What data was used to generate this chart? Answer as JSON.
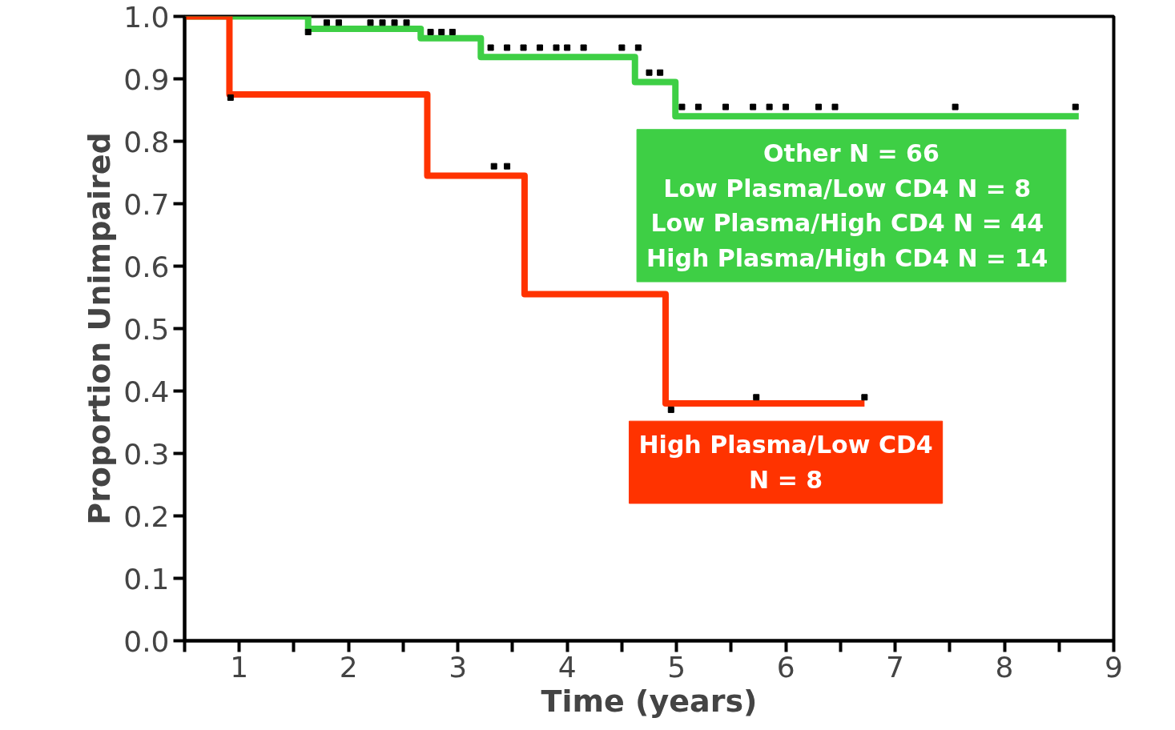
{
  "chart_data": {
    "type": "step",
    "xlabel": "Time (years)",
    "ylabel": "Proportion Unimpaired",
    "xlim": [
      0.5,
      9.0
    ],
    "ylim": [
      0.0,
      1.0
    ],
    "xticks": [
      {
        "value": 0.5,
        "label": null
      },
      1,
      {
        "value": 1.5,
        "label": null
      },
      2,
      {
        "value": 2.5,
        "label": null
      },
      3,
      {
        "value": 3.5,
        "label": null
      },
      4,
      {
        "value": 4.5,
        "label": null
      },
      5,
      {
        "value": 5.5,
        "label": null
      },
      6,
      {
        "value": 6.5,
        "label": null
      },
      7,
      {
        "value": 7.5,
        "label": null
      },
      8,
      {
        "value": 8.5,
        "label": null
      },
      9
    ],
    "yticks": [
      {
        "value": 0.0,
        "label": "0.0"
      },
      {
        "value": 0.1,
        "label": "0.1"
      },
      {
        "value": 0.2,
        "label": "0.2"
      },
      {
        "value": 0.3,
        "label": "0.3"
      },
      {
        "value": 0.4,
        "label": "0.4"
      },
      {
        "value": 0.5,
        "label": "0.5"
      },
      {
        "value": 0.6,
        "label": "0.6"
      },
      {
        "value": 0.7,
        "label": "0.7"
      },
      {
        "value": 0.8,
        "label": "0.8"
      },
      {
        "value": 0.9,
        "label": "0.9"
      },
      {
        "value": 1.0,
        "label": "1.0"
      }
    ],
    "grid": false,
    "legend": false,
    "series": [
      {
        "name": "Other N = 66\nLow Plasma/Low CD4  N = 8\nLow Plasma/High CD4  N = 44\nHigh Plasma/High CD4  N = 14",
        "color": "#3ecf45",
        "x": [
          0.5,
          1.63,
          2.66,
          3.21,
          4.62,
          4.99,
          8.68
        ],
        "values": [
          1.0,
          0.98,
          0.965,
          0.935,
          0.895,
          0.84,
          0.84
        ]
      },
      {
        "name": "High Plasma/Low CD4\nN = 8",
        "color": "#ff3300",
        "x": [
          0.5,
          0.91,
          2.72,
          3.61,
          4.9,
          6.72
        ],
        "values": [
          1.0,
          0.875,
          0.745,
          0.555,
          0.38,
          0.38
        ]
      },
      {
        "type": "scatter",
        "marker": "square",
        "color": "#000000",
        "x": [
          1.8,
          1.91,
          2.2,
          2.31,
          2.42,
          2.53,
          1.63,
          2.75,
          2.85,
          2.95,
          3.3,
          3.45,
          3.6,
          3.75,
          3.9,
          4.0,
          4.15,
          4.5,
          4.65,
          4.75,
          4.85,
          5.05,
          5.2,
          5.45,
          5.7,
          5.85,
          6.0,
          6.3,
          6.45,
          7.55,
          8.65,
          0.92,
          3.33,
          3.45,
          4.95,
          5.73,
          6.72
        ],
        "values": [
          0.99,
          0.99,
          0.99,
          0.99,
          0.99,
          0.99,
          0.975,
          0.975,
          0.975,
          0.975,
          0.95,
          0.95,
          0.95,
          0.95,
          0.95,
          0.95,
          0.95,
          0.95,
          0.95,
          0.91,
          0.91,
          0.855,
          0.855,
          0.855,
          0.855,
          0.855,
          0.855,
          0.855,
          0.855,
          0.855,
          0.855,
          0.87,
          0.76,
          0.76,
          0.37,
          0.39,
          0.39
        ]
      }
    ]
  }
}
